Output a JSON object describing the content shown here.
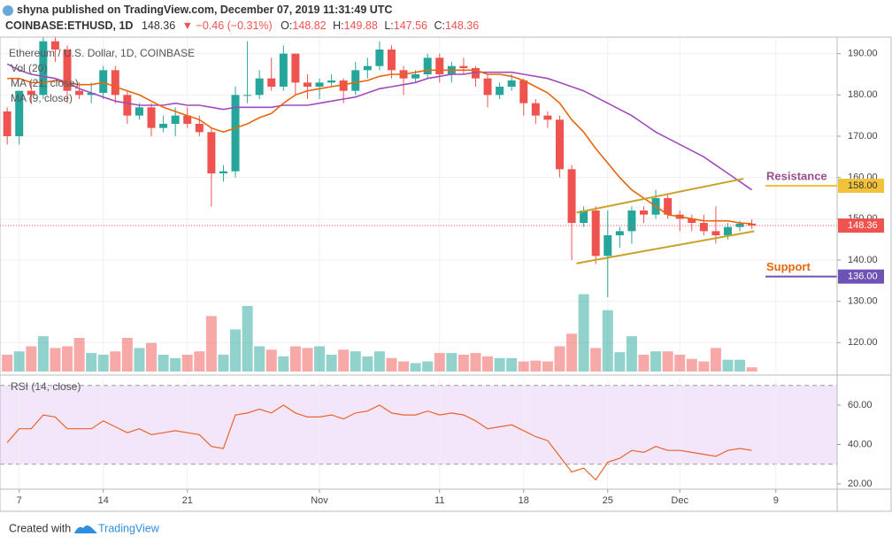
{
  "header": {
    "publisher": "shyna published on TradingView.com, December 07, 2019 11:31:49 UTC",
    "symbol": "COINBASE:ETHUSD, 1D",
    "price": "148.36",
    "change": "▼ −0.46 (−0.31%)",
    "ohlc": [
      {
        "label": "O:",
        "value": "148.82"
      },
      {
        "label": "H:",
        "value": "149.88"
      },
      {
        "label": "L:",
        "value": "147.56"
      },
      {
        "label": "C:",
        "value": "148.36"
      }
    ]
  },
  "footer": {
    "text": "Created with",
    "brand": "TradingView"
  },
  "chart_data": [
    {
      "type": "candlestick",
      "title": "Ethereum / U.S. Dollar, 1D, COINBASE",
      "xlim": [
        -0.6,
        69.1
      ],
      "xticks": [
        {
          "value": 1,
          "label": "7"
        },
        {
          "value": 8,
          "label": "14"
        },
        {
          "value": 15,
          "label": "21"
        },
        {
          "value": 26,
          "label": "Nov"
        },
        {
          "value": 36,
          "label": "11"
        },
        {
          "value": 43,
          "label": "18"
        },
        {
          "value": 50,
          "label": "25"
        },
        {
          "value": 56,
          "label": "Dec"
        },
        {
          "value": 64,
          "label": "9"
        }
      ],
      "ylim": [
        113,
        194
      ],
      "yticks": [
        {
          "value": 120,
          "label": "120.00"
        },
        {
          "value": 130,
          "label": "130.00"
        },
        {
          "value": 140,
          "label": "140.00"
        },
        {
          "value": 150,
          "label": "150.00"
        },
        {
          "value": 160,
          "label": "160.00"
        },
        {
          "value": 170,
          "label": "170.00"
        },
        {
          "value": 180,
          "label": "180.00"
        },
        {
          "value": 190,
          "label": "190.00"
        }
      ],
      "grid": true,
      "up_color": "#26a69a",
      "down_color": "#ef5350",
      "open": [
        176,
        170,
        181,
        180,
        193,
        191,
        181,
        180,
        180.5,
        186,
        180,
        175,
        177,
        172,
        173,
        175,
        173,
        171,
        161,
        161.5,
        180,
        180,
        184,
        182,
        190,
        183,
        182,
        183,
        183.5,
        181,
        186,
        187,
        191,
        186,
        184,
        185,
        189,
        185,
        187,
        186.5,
        184,
        180,
        182,
        183.5,
        178,
        175,
        174,
        162,
        149,
        152,
        141,
        146,
        147,
        152,
        151,
        155,
        151,
        150,
        149,
        147,
        146,
        148,
        148.82
      ],
      "high": [
        177,
        181,
        183,
        194,
        194,
        192,
        183,
        183,
        187,
        187,
        181,
        178,
        178,
        175,
        177,
        177,
        175,
        172,
        163,
        182,
        193,
        186,
        189,
        192,
        190,
        185,
        184,
        185,
        184,
        188,
        189,
        193,
        192,
        187,
        186,
        190,
        190,
        188,
        189,
        187,
        185,
        183,
        185,
        184,
        179,
        176,
        175,
        163,
        153,
        153,
        152,
        148,
        153,
        153,
        157,
        156,
        152,
        151,
        151,
        153,
        149,
        149.5,
        149.88
      ],
      "low": [
        168,
        168,
        178,
        179,
        188,
        178,
        179,
        178,
        179,
        178,
        173,
        174,
        170,
        171,
        170,
        172,
        170,
        153,
        159,
        160,
        178,
        179,
        181,
        181,
        180,
        179,
        179,
        182,
        178,
        180,
        184,
        186,
        184,
        180,
        183,
        184,
        183,
        183,
        185,
        182,
        177,
        179,
        181,
        175,
        173,
        172,
        160,
        140,
        148,
        139,
        131,
        143,
        144,
        149,
        150,
        150,
        147,
        147,
        146,
        144,
        145,
        147,
        147.56
      ],
      "close": [
        170,
        181,
        180,
        193,
        191,
        181,
        180,
        180.5,
        186,
        180,
        175,
        177,
        172,
        173,
        175,
        173,
        171,
        161,
        161.5,
        180,
        180,
        184,
        182,
        190,
        183,
        182,
        183,
        183.5,
        181,
        186,
        187,
        191,
        186,
        184,
        185,
        189,
        185,
        187,
        186.5,
        184,
        180,
        182,
        183.5,
        178,
        175,
        174,
        162,
        149,
        152,
        141,
        146,
        147,
        152,
        151,
        155,
        151,
        150,
        149,
        147,
        146,
        148,
        148.82,
        148.36
      ],
      "series": [
        {
          "name": "MA (21, close)",
          "color": "#a04bbd",
          "values": [
            187.5,
            186,
            185,
            184.5,
            184,
            183,
            181.5,
            180.5,
            179.5,
            178.5,
            178,
            177.5,
            177.5,
            177.5,
            178,
            177.5,
            177.5,
            177,
            176.5,
            177,
            177,
            177,
            177,
            177.5,
            177.5,
            177.5,
            178,
            178.5,
            179,
            179.5,
            180.5,
            181.5,
            182,
            182.5,
            183,
            184,
            184.5,
            185,
            185,
            185.5,
            185.5,
            185.5,
            185.5,
            185,
            184.5,
            184,
            183,
            182,
            181,
            179.5,
            178,
            176.5,
            175,
            173,
            171,
            169.5,
            168,
            166.5,
            165,
            163,
            161,
            159,
            157
          ]
        },
        {
          "name": "MA (9, close)",
          "color": "#e8660c",
          "values": [
            184,
            184,
            183,
            183,
            183.5,
            183,
            182.5,
            182.5,
            183,
            182,
            181,
            180,
            178.5,
            177,
            176,
            175,
            174,
            172,
            171,
            172,
            173,
            174.5,
            175.5,
            178,
            180,
            181,
            181.5,
            182,
            182.5,
            183,
            183.5,
            184.5,
            185,
            185,
            185.5,
            186,
            186,
            186,
            186,
            186,
            185,
            185,
            184.5,
            183.5,
            182,
            180.5,
            178,
            174,
            171,
            167,
            163.5,
            160,
            157,
            155,
            153,
            151,
            150.5,
            150,
            149.5,
            149.5,
            149.5,
            149,
            148.8
          ]
        }
      ],
      "levels": [
        {
          "name": "Resistance",
          "value": 158,
          "label": "158.00",
          "color": "#f2c23a",
          "text_color": "#9b4f8f"
        },
        {
          "name": "Support",
          "value": 136,
          "label": "136.00",
          "color": "#6f52b5",
          "text_color": "#e8660c"
        }
      ],
      "last_price": {
        "value": 148.36,
        "label": "148.36",
        "color": "#ef5350"
      },
      "trendlines": [
        {
          "color": "#c9a227",
          "x": [
            47.4,
            61.3
          ],
          "y": [
            151.5,
            159.7
          ]
        },
        {
          "color": "#c9a227",
          "x": [
            47.4,
            62.2
          ],
          "y": [
            139.2,
            147
          ]
        }
      ]
    },
    {
      "type": "bar",
      "title": "Vol (20)",
      "ylim": [
        0,
        100
      ],
      "values": [
        20,
        24,
        30,
        42,
        28,
        30,
        40,
        22,
        20,
        24,
        40,
        28,
        34,
        20,
        16,
        20,
        24,
        66,
        20,
        50,
        78,
        30,
        26,
        18,
        30,
        28,
        30,
        20,
        26,
        24,
        18,
        24,
        16,
        12,
        10,
        12,
        22,
        22,
        20,
        22,
        18,
        16,
        16,
        12,
        13,
        12,
        30,
        45,
        92,
        28,
        73,
        23,
        42,
        20,
        24,
        24,
        20,
        15,
        12,
        28,
        14,
        14,
        5
      ]
    },
    {
      "type": "line",
      "title": "RSI (14, close)",
      "color": "#e8642c",
      "ylim": [
        17.3,
        73.5
      ],
      "yticks": [
        {
          "value": 20,
          "label": "20.00"
        },
        {
          "value": 40,
          "label": "40.00"
        },
        {
          "value": 60,
          "label": "60.00"
        }
      ],
      "band": [
        30,
        70
      ],
      "band_color": "#f3e6fa",
      "values": [
        41,
        48,
        48,
        55,
        54,
        48,
        48,
        48,
        52,
        49,
        46,
        48,
        45,
        46,
        47,
        46,
        45,
        39,
        38,
        55,
        56,
        58,
        56,
        60,
        56,
        54,
        54,
        55,
        53,
        56,
        57,
        60,
        56,
        55,
        55,
        57,
        55,
        56,
        55,
        52,
        48,
        49,
        50,
        47,
        44,
        42,
        34,
        26,
        28,
        22,
        31,
        33,
        37,
        36,
        39,
        37,
        37,
        36,
        35,
        34,
        37,
        38,
        37
      ]
    }
  ]
}
